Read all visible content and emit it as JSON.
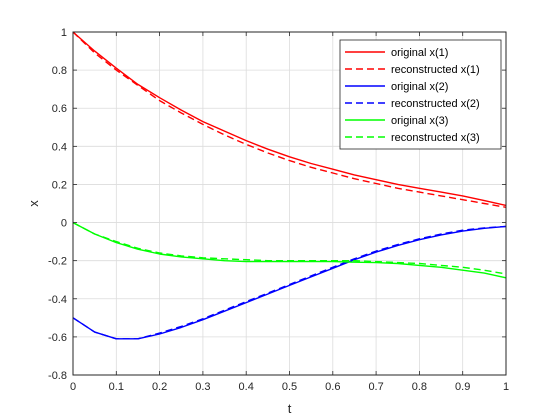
{
  "chart_data": {
    "type": "line",
    "title": "",
    "xlabel": "t",
    "ylabel": "x",
    "xlim": [
      0,
      1
    ],
    "ylim": [
      -0.8,
      1
    ],
    "grid": true,
    "legend_position": "top-right",
    "xticks": [
      0,
      0.1,
      0.2,
      0.3,
      0.4,
      0.5,
      0.6,
      0.7,
      0.8,
      0.9,
      1
    ],
    "xtick_labels": [
      "0",
      "0.1",
      "0.2",
      "0.3",
      "0.4",
      "0.5",
      "0.6",
      "0.7",
      "0.8",
      "0.9",
      "1"
    ],
    "yticks": [
      -0.8,
      -0.6,
      -0.4,
      -0.2,
      0,
      0.2,
      0.4,
      0.6,
      0.8,
      1
    ],
    "ytick_labels": [
      "-0.8",
      "-0.6",
      "-0.4",
      "-0.2",
      "0",
      "0.2",
      "0.4",
      "0.6",
      "0.8",
      "1"
    ],
    "x": [
      0,
      0.05,
      0.1,
      0.15,
      0.2,
      0.25,
      0.3,
      0.35,
      0.4,
      0.45,
      0.5,
      0.55,
      0.6,
      0.65,
      0.7,
      0.75,
      0.8,
      0.85,
      0.9,
      0.95,
      1.0
    ],
    "series": [
      {
        "name": "original x(1)",
        "color": "#ff0000",
        "dashed": false,
        "values": [
          1.0,
          0.9,
          0.81,
          0.725,
          0.655,
          0.59,
          0.53,
          0.48,
          0.43,
          0.385,
          0.345,
          0.31,
          0.28,
          0.25,
          0.225,
          0.2,
          0.18,
          0.16,
          0.14,
          0.115,
          0.09
        ]
      },
      {
        "name": "reconstructed x(1)",
        "color": "#ff0000",
        "dashed": true,
        "values": [
          1.0,
          0.89,
          0.8,
          0.72,
          0.64,
          0.575,
          0.515,
          0.46,
          0.41,
          0.365,
          0.325,
          0.29,
          0.26,
          0.23,
          0.205,
          0.18,
          0.16,
          0.14,
          0.12,
          0.1,
          0.08
        ]
      },
      {
        "name": "original x(2)",
        "color": "#0000ff",
        "dashed": false,
        "values": [
          -0.5,
          -0.575,
          -0.61,
          -0.61,
          -0.585,
          -0.55,
          -0.51,
          -0.465,
          -0.42,
          -0.375,
          -0.33,
          -0.285,
          -0.24,
          -0.195,
          -0.155,
          -0.12,
          -0.09,
          -0.065,
          -0.045,
          -0.03,
          -0.02
        ]
      },
      {
        "name": "reconstructed x(2)",
        "color": "#0000ff",
        "dashed": true,
        "values": [
          -0.5,
          -0.575,
          -0.61,
          -0.61,
          -0.58,
          -0.545,
          -0.505,
          -0.46,
          -0.415,
          -0.37,
          -0.325,
          -0.28,
          -0.235,
          -0.19,
          -0.15,
          -0.115,
          -0.085,
          -0.06,
          -0.04,
          -0.028,
          -0.02
        ]
      },
      {
        "name": "original x(3)",
        "color": "#00ff00",
        "dashed": false,
        "values": [
          0.0,
          -0.06,
          -0.105,
          -0.14,
          -0.165,
          -0.18,
          -0.19,
          -0.2,
          -0.205,
          -0.205,
          -0.205,
          -0.205,
          -0.205,
          -0.208,
          -0.21,
          -0.215,
          -0.225,
          -0.235,
          -0.25,
          -0.265,
          -0.29
        ]
      },
      {
        "name": "reconstructed x(3)",
        "color": "#00ff00",
        "dashed": true,
        "values": [
          0.0,
          -0.06,
          -0.1,
          -0.135,
          -0.16,
          -0.175,
          -0.185,
          -0.19,
          -0.195,
          -0.2,
          -0.2,
          -0.2,
          -0.2,
          -0.2,
          -0.205,
          -0.21,
          -0.215,
          -0.225,
          -0.235,
          -0.25,
          -0.27
        ]
      }
    ]
  }
}
